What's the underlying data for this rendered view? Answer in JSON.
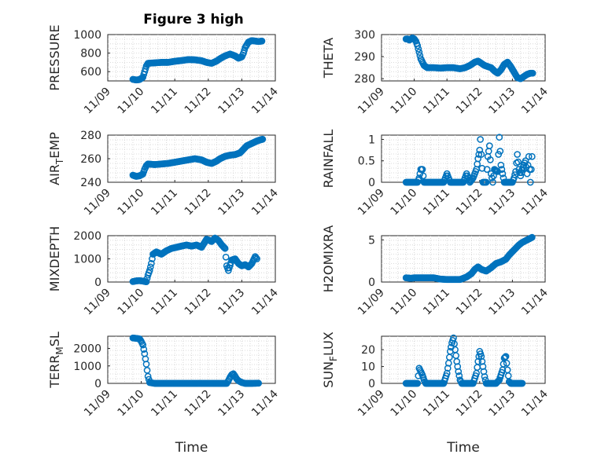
{
  "figure_title": "Figure 3 high",
  "marker_color": "#0072BD",
  "chart_data": [
    {
      "type": "scatter",
      "id": "pressure",
      "ylabel": "PRESSURE",
      "ylabel_sub": "",
      "ylim": [
        500,
        1000
      ],
      "yticks": [
        600,
        800,
        1000
      ],
      "xlim": [
        0,
        5
      ],
      "xticks": [
        0,
        1,
        2,
        3,
        4,
        5
      ],
      "xticklabels": [
        "11/09",
        "11/10",
        "11/11",
        "11/12",
        "11/13",
        "11/14"
      ],
      "xlabel": "",
      "title": "Figure 3 high",
      "points": [
        [
          0.75,
          517
        ],
        [
          0.85,
          510
        ],
        [
          0.95,
          515
        ],
        [
          1.05,
          540
        ],
        [
          1.1,
          600
        ],
        [
          1.15,
          660
        ],
        [
          1.2,
          690
        ],
        [
          1.4,
          695
        ],
        [
          1.6,
          700
        ],
        [
          1.8,
          700
        ],
        [
          2.0,
          712
        ],
        [
          2.2,
          720
        ],
        [
          2.4,
          730
        ],
        [
          2.6,
          728
        ],
        [
          2.8,
          718
        ],
        [
          2.95,
          700
        ],
        [
          3.1,
          690
        ],
        [
          3.25,
          715
        ],
        [
          3.35,
          740
        ],
        [
          3.5,
          770
        ],
        [
          3.65,
          790
        ],
        [
          3.8,
          770
        ],
        [
          3.9,
          745
        ],
        [
          4.0,
          760
        ],
        [
          4.05,
          800
        ],
        [
          4.1,
          860
        ],
        [
          4.2,
          920
        ],
        [
          4.3,
          935
        ],
        [
          4.4,
          930
        ],
        [
          4.5,
          925
        ],
        [
          4.6,
          930
        ]
      ]
    },
    {
      "type": "scatter",
      "id": "theta",
      "ylabel": "THETA",
      "ylabel_sub": "",
      "ylim": [
        279,
        300
      ],
      "yticks": [
        280,
        290,
        300
      ],
      "xlim": [
        0,
        5
      ],
      "xticks": [
        0,
        1,
        2,
        3,
        4,
        5
      ],
      "xticklabels": [
        "11/09",
        "11/10",
        "11/11",
        "11/12",
        "11/13",
        "11/14"
      ],
      "xlabel": "",
      "title": "",
      "points": [
        [
          0.75,
          298
        ],
        [
          0.8,
          298
        ],
        [
          0.85,
          297.5
        ],
        [
          0.9,
          298
        ],
        [
          0.95,
          298.5
        ],
        [
          1.0,
          298
        ],
        [
          1.05,
          297
        ],
        [
          1.1,
          295
        ],
        [
          1.15,
          292
        ],
        [
          1.2,
          289
        ],
        [
          1.3,
          286
        ],
        [
          1.4,
          285
        ],
        [
          1.6,
          285
        ],
        [
          1.8,
          284.8
        ],
        [
          2.0,
          285
        ],
        [
          2.2,
          285
        ],
        [
          2.4,
          284.5
        ],
        [
          2.55,
          285
        ],
        [
          2.7,
          286
        ],
        [
          2.85,
          287.5
        ],
        [
          2.95,
          288
        ],
        [
          3.05,
          287
        ],
        [
          3.15,
          286
        ],
        [
          3.25,
          285.5
        ],
        [
          3.35,
          285
        ],
        [
          3.45,
          283.5
        ],
        [
          3.55,
          282.5
        ],
        [
          3.65,
          284
        ],
        [
          3.75,
          286.5
        ],
        [
          3.85,
          287.5
        ],
        [
          3.95,
          285.5
        ],
        [
          4.05,
          283
        ],
        [
          4.15,
          280.5
        ],
        [
          4.25,
          280
        ],
        [
          4.35,
          281
        ],
        [
          4.45,
          282
        ],
        [
          4.55,
          282.5
        ],
        [
          4.62,
          282.5
        ]
      ]
    },
    {
      "type": "scatter",
      "id": "air_temp",
      "ylabel": "AIR",
      "ylabel_sub": "T",
      "ylabel_tail": "EMP",
      "ylim": [
        240,
        280
      ],
      "yticks": [
        240,
        260,
        280
      ],
      "xlim": [
        0,
        5
      ],
      "xticks": [
        0,
        1,
        2,
        3,
        4,
        5
      ],
      "xticklabels": [
        "11/09",
        "11/10",
        "11/11",
        "11/12",
        "11/13",
        "11/14"
      ],
      "xlabel": "",
      "title": "",
      "points": [
        [
          0.75,
          246
        ],
        [
          0.85,
          245
        ],
        [
          0.95,
          245.5
        ],
        [
          1.05,
          247
        ],
        [
          1.1,
          251
        ],
        [
          1.15,
          254
        ],
        [
          1.2,
          255.5
        ],
        [
          1.4,
          255
        ],
        [
          1.6,
          255.5
        ],
        [
          1.8,
          256
        ],
        [
          2.0,
          257
        ],
        [
          2.2,
          258
        ],
        [
          2.4,
          259
        ],
        [
          2.6,
          260
        ],
        [
          2.8,
          259
        ],
        [
          2.95,
          257
        ],
        [
          3.1,
          256
        ],
        [
          3.25,
          258
        ],
        [
          3.35,
          260
        ],
        [
          3.5,
          262
        ],
        [
          3.65,
          263
        ],
        [
          3.8,
          263.5
        ],
        [
          3.95,
          265
        ],
        [
          4.05,
          268
        ],
        [
          4.15,
          271
        ],
        [
          4.3,
          273
        ],
        [
          4.45,
          275
        ],
        [
          4.55,
          276
        ],
        [
          4.62,
          276.5
        ]
      ]
    },
    {
      "type": "scatter",
      "id": "rainfall",
      "ylabel": "RAINFALL",
      "ylabel_sub": "",
      "ylim": [
        0,
        1.1
      ],
      "yticks": [
        0,
        0.5,
        1
      ],
      "yticklabels": [
        "0",
        "0.5",
        "1"
      ],
      "xlim": [
        0,
        5
      ],
      "xticks": [
        0,
        1,
        2,
        3,
        4,
        5
      ],
      "xticklabels": [
        "11/09",
        "11/10",
        "11/11",
        "11/12",
        "11/13",
        "11/14"
      ],
      "xlabel": "",
      "title": "",
      "points": [
        [
          0.75,
          0
        ],
        [
          0.9,
          0
        ],
        [
          1.0,
          0
        ],
        [
          1.1,
          0
        ],
        [
          1.15,
          0.1
        ],
        [
          1.2,
          0.3
        ],
        [
          1.25,
          0.3
        ],
        [
          1.3,
          0
        ],
        [
          1.5,
          0
        ],
        [
          1.7,
          0
        ],
        [
          1.9,
          0
        ],
        [
          2.0,
          0.2
        ],
        [
          2.1,
          0
        ],
        [
          2.3,
          0
        ],
        [
          2.5,
          0
        ],
        [
          2.6,
          0.2
        ],
        [
          2.7,
          0
        ],
        [
          2.8,
          0.1
        ],
        [
          2.85,
          0.2
        ],
        [
          2.9,
          0.3
        ],
        [
          2.95,
          0.55
        ],
        [
          3.0,
          0.75
        ],
        [
          3.02,
          1.0
        ],
        [
          3.05,
          0.65
        ],
        [
          3.1,
          0
        ],
        [
          3.2,
          0
        ],
        [
          3.25,
          0.6
        ],
        [
          3.3,
          0.85
        ],
        [
          3.35,
          0.2
        ],
        [
          3.4,
          0
        ],
        [
          3.45,
          0.3
        ],
        [
          3.55,
          0.25
        ],
        [
          3.6,
          1.05
        ],
        [
          3.65,
          0.4
        ],
        [
          3.7,
          0.2
        ],
        [
          3.75,
          0
        ],
        [
          3.85,
          0
        ],
        [
          4.0,
          0
        ],
        [
          4.05,
          0.1
        ],
        [
          4.1,
          0.25
        ],
        [
          4.15,
          0.65
        ],
        [
          4.2,
          0.3
        ],
        [
          4.25,
          0.15
        ],
        [
          4.3,
          0.3
        ],
        [
          4.4,
          0.5
        ],
        [
          4.45,
          0.2
        ],
        [
          4.5,
          0.6
        ],
        [
          4.55,
          0
        ],
        [
          4.6,
          0.6
        ]
      ]
    },
    {
      "type": "scatter",
      "id": "mixdepth",
      "ylabel": "MIXDEPTH",
      "ylabel_sub": "",
      "ylim": [
        0,
        2000
      ],
      "yticks": [
        0,
        1000,
        2000
      ],
      "xlim": [
        0,
        5
      ],
      "xticks": [
        0,
        1,
        2,
        3,
        4,
        5
      ],
      "xticklabels": [
        "11/09",
        "11/10",
        "11/11",
        "11/12",
        "11/13",
        "11/14"
      ],
      "xlabel": "",
      "title": "",
      "points": [
        [
          0.75,
          20
        ],
        [
          0.85,
          50
        ],
        [
          0.95,
          60
        ],
        [
          1.05,
          40
        ],
        [
          1.15,
          10
        ],
        [
          1.2,
          300
        ],
        [
          1.25,
          500
        ],
        [
          1.3,
          800
        ],
        [
          1.35,
          1200
        ],
        [
          1.45,
          1300
        ],
        [
          1.6,
          1200
        ],
        [
          1.75,
          1350
        ],
        [
          1.9,
          1450
        ],
        [
          2.05,
          1500
        ],
        [
          2.2,
          1550
        ],
        [
          2.35,
          1600
        ],
        [
          2.5,
          1550
        ],
        [
          2.65,
          1600
        ],
        [
          2.8,
          1500
        ],
        [
          2.95,
          1850
        ],
        [
          3.1,
          1750
        ],
        [
          3.2,
          1900
        ],
        [
          3.3,
          1800
        ],
        [
          3.4,
          1600
        ],
        [
          3.5,
          1450
        ],
        [
          3.55,
          700
        ],
        [
          3.6,
          500
        ],
        [
          3.7,
          950
        ],
        [
          3.8,
          1000
        ],
        [
          3.9,
          800
        ],
        [
          4.0,
          700
        ],
        [
          4.1,
          750
        ],
        [
          4.2,
          650
        ],
        [
          4.3,
          800
        ],
        [
          4.4,
          1100
        ],
        [
          4.45,
          1000
        ]
      ]
    },
    {
      "type": "scatter",
      "id": "h2omixra",
      "ylabel": "H2OMIXRA",
      "ylabel_sub": "",
      "ylim": [
        0,
        5.5
      ],
      "yticks": [
        0,
        5
      ],
      "xlim": [
        0,
        5
      ],
      "xticks": [
        0,
        1,
        2,
        3,
        4,
        5
      ],
      "xticklabels": [
        "11/09",
        "11/10",
        "11/11",
        "11/12",
        "11/13",
        "11/14"
      ],
      "xlabel": "",
      "title": "",
      "points": [
        [
          0.75,
          0.5
        ],
        [
          0.9,
          0.45
        ],
        [
          1.0,
          0.5
        ],
        [
          1.2,
          0.5
        ],
        [
          1.4,
          0.5
        ],
        [
          1.6,
          0.5
        ],
        [
          1.8,
          0.35
        ],
        [
          2.0,
          0.3
        ],
        [
          2.2,
          0.3
        ],
        [
          2.4,
          0.3
        ],
        [
          2.6,
          0.6
        ],
        [
          2.75,
          1.0
        ],
        [
          2.85,
          1.5
        ],
        [
          2.95,
          1.8
        ],
        [
          3.05,
          1.5
        ],
        [
          3.2,
          1.3
        ],
        [
          3.35,
          1.7
        ],
        [
          3.5,
          2.2
        ],
        [
          3.65,
          2.4
        ],
        [
          3.8,
          2.7
        ],
        [
          3.9,
          3.2
        ],
        [
          4.0,
          3.6
        ],
        [
          4.1,
          4.0
        ],
        [
          4.2,
          4.4
        ],
        [
          4.3,
          4.7
        ],
        [
          4.4,
          4.9
        ],
        [
          4.5,
          5.1
        ],
        [
          4.6,
          5.3
        ]
      ]
    },
    {
      "type": "scatter",
      "id": "terr_msl",
      "ylabel": "TERR",
      "ylabel_sub": "M",
      "ylabel_tail": "SL",
      "ylim": [
        0,
        2700
      ],
      "yticks": [
        0,
        1000,
        2000
      ],
      "xlim": [
        0,
        5
      ],
      "xticks": [
        0,
        1,
        2,
        3,
        4,
        5
      ],
      "xticklabels": [
        "11/09",
        "11/10",
        "11/11",
        "11/12",
        "11/13",
        "11/14"
      ],
      "xlabel": "Time",
      "title": "",
      "points": [
        [
          0.75,
          2600
        ],
        [
          0.85,
          2580
        ],
        [
          0.95,
          2550
        ],
        [
          1.0,
          2400
        ],
        [
          1.05,
          2200
        ],
        [
          1.1,
          1700
        ],
        [
          1.15,
          1100
        ],
        [
          1.2,
          400
        ],
        [
          1.25,
          50
        ],
        [
          1.4,
          0
        ],
        [
          1.6,
          0
        ],
        [
          1.8,
          0
        ],
        [
          2.0,
          0
        ],
        [
          2.2,
          0
        ],
        [
          2.4,
          0
        ],
        [
          2.6,
          0
        ],
        [
          2.8,
          0
        ],
        [
          3.0,
          0
        ],
        [
          3.2,
          0
        ],
        [
          3.4,
          0
        ],
        [
          3.55,
          0
        ],
        [
          3.6,
          150
        ],
        [
          3.65,
          350
        ],
        [
          3.7,
          500
        ],
        [
          3.75,
          550
        ],
        [
          3.8,
          400
        ],
        [
          3.85,
          250
        ],
        [
          3.9,
          150
        ],
        [
          4.0,
          50
        ],
        [
          4.1,
          0
        ],
        [
          4.3,
          0
        ],
        [
          4.5,
          10
        ]
      ]
    },
    {
      "type": "scatter",
      "id": "sun_flux",
      "ylabel": "SUN",
      "ylabel_sub": "F",
      "ylabel_tail": "LUX",
      "ylim": [
        0,
        28
      ],
      "yticks": [
        0,
        10,
        20
      ],
      "xlim": [
        0,
        5
      ],
      "xticks": [
        0,
        1,
        2,
        3,
        4,
        5
      ],
      "xticklabels": [
        "11/09",
        "11/10",
        "11/11",
        "11/12",
        "11/13",
        "11/14"
      ],
      "xlabel": "Time",
      "title": "",
      "points": [
        [
          0.75,
          0
        ],
        [
          0.9,
          0
        ],
        [
          1.0,
          0
        ],
        [
          1.1,
          0
        ],
        [
          1.15,
          9
        ],
        [
          1.2,
          7
        ],
        [
          1.25,
          5
        ],
        [
          1.3,
          2
        ],
        [
          1.35,
          0
        ],
        [
          1.5,
          0
        ],
        [
          1.7,
          0
        ],
        [
          1.9,
          0
        ],
        [
          2.0,
          6
        ],
        [
          2.05,
          12
        ],
        [
          2.1,
          19
        ],
        [
          2.15,
          24
        ],
        [
          2.2,
          27
        ],
        [
          2.25,
          20
        ],
        [
          2.3,
          13
        ],
        [
          2.35,
          7
        ],
        [
          2.4,
          2
        ],
        [
          2.45,
          0
        ],
        [
          2.6,
          0
        ],
        [
          2.8,
          0
        ],
        [
          2.9,
          6
        ],
        [
          2.95,
          13
        ],
        [
          3.0,
          19
        ],
        [
          3.05,
          16
        ],
        [
          3.1,
          10
        ],
        [
          3.15,
          4
        ],
        [
          3.2,
          0
        ],
        [
          3.35,
          0
        ],
        [
          3.5,
          0
        ],
        [
          3.6,
          2
        ],
        [
          3.7,
          8
        ],
        [
          3.75,
          15
        ],
        [
          3.8,
          16
        ],
        [
          3.85,
          8
        ],
        [
          3.9,
          1
        ],
        [
          3.95,
          0
        ],
        [
          4.1,
          0
        ],
        [
          4.3,
          0
        ]
      ]
    }
  ]
}
